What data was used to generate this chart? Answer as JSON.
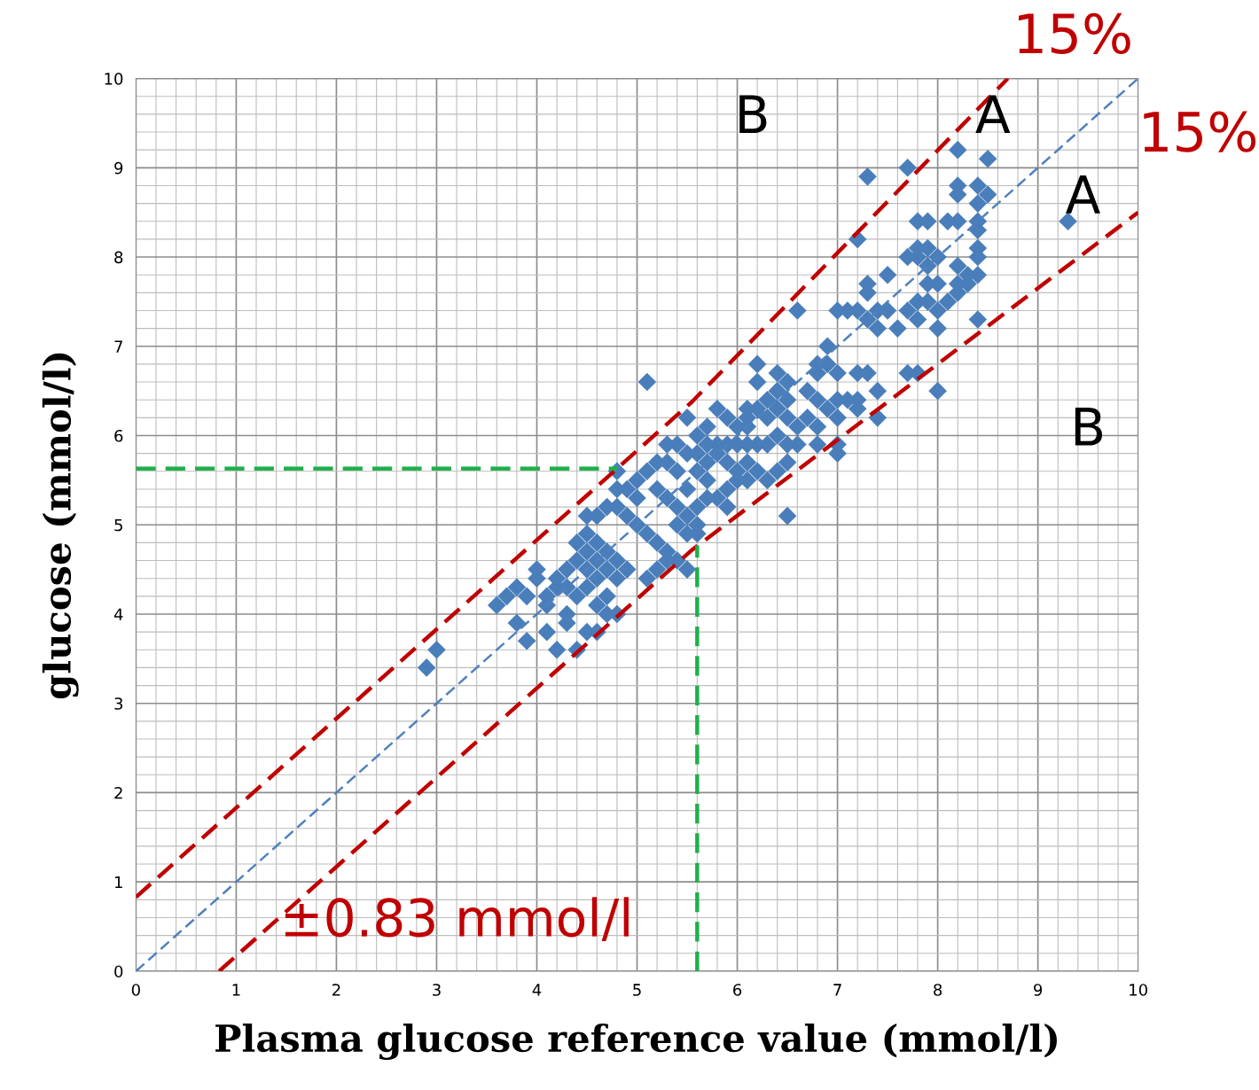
{
  "chart_data": {
    "type": "scatter",
    "xlabel": "Plasma glucose reference value (mmol/l)",
    "ylabel": "glucose (mmol/l)",
    "xlim": [
      0,
      10
    ],
    "ylim": [
      0,
      10
    ],
    "xticks": [
      0,
      1,
      2,
      3,
      4,
      5,
      6,
      7,
      8,
      9,
      10
    ],
    "yticks": [
      0,
      1,
      2,
      3,
      4,
      5,
      6,
      7,
      8,
      9,
      10
    ],
    "grid": true,
    "legend": false,
    "series": [
      {
        "type": "line",
        "color": "#4f81bd",
        "line_style": "dashed",
        "x": [
          0,
          10
        ],
        "values": [
          0,
          10
        ]
      },
      {
        "type": "line",
        "color": "#c00000",
        "line_style": "dashed",
        "x": [
          0,
          5.55,
          8.7
        ],
        "values": [
          0.83,
          6.38,
          10
        ]
      },
      {
        "type": "line",
        "color": "#c00000",
        "line_style": "dashed",
        "x": [
          0.83,
          5.55,
          10
        ],
        "values": [
          0,
          4.72,
          8.5
        ]
      },
      {
        "type": "line",
        "color": "#1eb04a",
        "line_style": "dashed",
        "x": [
          0,
          4.8
        ],
        "values": [
          5.63,
          5.63
        ]
      },
      {
        "type": "line",
        "color": "#1eb04a",
        "line_style": "dashed",
        "x": [
          5.6,
          5.6
        ],
        "values": [
          0,
          4.77
        ]
      },
      {
        "marker": "diamond",
        "color": "#4a7ebb",
        "x": [
          7.3,
          7.7,
          8.2,
          8.5,
          8.2,
          8.2,
          8.4,
          8.5,
          8.4,
          7.2,
          7.8,
          7.9,
          8.1,
          8.2,
          8.4,
          8.4,
          8.4,
          8.4,
          7.7,
          7.8,
          7.9,
          8.0,
          7.9,
          7.8,
          7.3,
          7.3,
          7.5,
          8.2,
          8.3,
          8.2,
          8.3,
          8.4,
          8.2,
          8.1,
          7.9,
          8.0,
          7.8,
          7.7,
          8.0,
          7.9,
          6.6,
          7.0,
          7.1,
          7.2,
          7.3,
          7.4,
          7.5,
          7.4,
          7.6,
          7.8,
          8.0,
          8.4,
          6.9,
          6.8,
          6.9,
          7.0,
          6.8,
          7.2,
          7.3,
          7.4,
          7.7,
          7.8,
          8.0,
          6.7,
          6.8,
          6.9,
          7.0,
          7.1,
          7.2,
          7.2,
          7.0,
          6.8,
          6.7,
          7.4,
          6.8,
          7.0,
          7.0,
          6.2,
          6.4,
          6.5,
          6.4,
          6.2,
          6.3,
          6.5,
          6.1,
          6.2,
          6.3,
          6.5,
          6.6,
          6.1,
          6.4,
          6.4,
          5.1,
          5.8,
          5.7,
          5.5,
          5.6,
          5.9,
          6.0,
          6.1,
          5.7,
          5.8,
          5.9,
          6.0,
          6.1,
          6.2,
          6.3,
          6.5,
          6.6,
          6.5,
          6.4,
          6.3,
          6.5,
          5.4,
          5.3,
          5.5,
          5.6,
          5.7,
          5.8,
          5.9,
          6.0,
          6.1,
          6.2,
          6.1,
          6.0,
          5.9,
          5.8,
          5.7,
          5.6,
          5.5,
          5.4,
          5.3,
          5.2,
          5.1,
          5.0,
          4.9,
          5.0,
          5.2,
          5.3,
          5.4,
          5.5,
          5.6,
          5.7,
          5.9,
          5.6,
          5.4,
          5.5,
          5.6,
          4.8,
          4.8,
          4.7,
          4.6,
          4.5,
          4.8,
          4.9,
          5.0,
          5.1,
          5.2,
          5.3,
          5.4,
          5.5,
          5.3,
          5.2,
          5.1,
          4.9,
          4.8,
          4.7,
          4.6,
          4.5,
          4.4,
          4.5,
          4.6,
          4.7,
          4.8,
          4.6,
          4.5,
          4.4,
          4.3,
          4.2,
          4.3,
          4.4,
          4.5,
          4.7,
          4.6,
          4.7,
          4.8,
          4.5,
          4.4,
          4.6,
          4.0,
          4.0,
          4.1,
          4.1,
          4.2,
          3.9,
          3.8,
          3.7,
          3.6,
          3.8,
          3.9,
          4.1,
          4.2,
          4.3,
          4.3,
          2.9,
          3.0,
          9.3
        ],
        "values": [
          8.9,
          9.0,
          9.2,
          9.1,
          8.8,
          8.7,
          8.8,
          8.7,
          8.6,
          8.2,
          8.4,
          8.4,
          8.4,
          8.4,
          8.4,
          8.3,
          8.1,
          8.0,
          8.0,
          8.1,
          8.1,
          8.0,
          7.9,
          8.0,
          7.7,
          7.6,
          7.8,
          7.9,
          7.8,
          7.7,
          7.7,
          7.8,
          7.6,
          7.5,
          7.7,
          7.7,
          7.5,
          7.4,
          7.4,
          7.5,
          7.4,
          7.4,
          7.4,
          7.4,
          7.3,
          7.4,
          7.4,
          7.2,
          7.2,
          7.3,
          7.2,
          7.3,
          7.0,
          6.8,
          6.8,
          6.7,
          6.7,
          6.7,
          6.7,
          6.5,
          6.7,
          6.7,
          6.5,
          6.5,
          6.4,
          6.3,
          6.4,
          6.4,
          6.4,
          6.3,
          6.2,
          6.1,
          6.2,
          6.2,
          5.9,
          5.9,
          5.8,
          6.8,
          6.7,
          6.6,
          6.5,
          6.6,
          6.4,
          6.4,
          6.3,
          6.3,
          6.2,
          6.2,
          6.1,
          6.2,
          6.0,
          6.3,
          6.6,
          6.3,
          6.1,
          6.2,
          6.0,
          6.2,
          6.1,
          6.1,
          5.9,
          5.9,
          5.9,
          5.9,
          5.9,
          5.9,
          5.9,
          5.9,
          5.9,
          5.7,
          5.6,
          5.5,
          5.1,
          5.9,
          5.9,
          5.8,
          5.8,
          5.7,
          5.8,
          5.7,
          5.6,
          5.7,
          5.6,
          5.5,
          5.5,
          5.4,
          5.3,
          5.5,
          5.6,
          5.4,
          5.6,
          5.7,
          5.7,
          5.6,
          5.5,
          5.4,
          5.3,
          5.4,
          5.3,
          5.2,
          5.1,
          5.2,
          5.3,
          5.2,
          5.0,
          5.0,
          4.9,
          4.9,
          5.6,
          5.4,
          5.2,
          5.1,
          5.1,
          5.2,
          5.1,
          5.0,
          4.9,
          4.8,
          4.7,
          4.6,
          4.5,
          4.6,
          4.5,
          4.4,
          4.5,
          4.6,
          4.7,
          4.8,
          4.9,
          4.8,
          4.7,
          4.6,
          4.5,
          4.4,
          4.4,
          4.5,
          4.6,
          4.5,
          4.4,
          4.3,
          4.2,
          4.3,
          4.2,
          4.1,
          4.0,
          4.0,
          3.8,
          3.6,
          3.8,
          4.5,
          4.4,
          4.2,
          4.1,
          4.3,
          4.2,
          4.3,
          4.2,
          4.1,
          3.9,
          3.7,
          3.8,
          3.6,
          4.0,
          3.9,
          3.4,
          3.6,
          8.4
        ]
      }
    ],
    "annotations": [
      "15%",
      "15%",
      "A",
      "A",
      "B",
      "B",
      "±0.83 mmol/l"
    ]
  }
}
